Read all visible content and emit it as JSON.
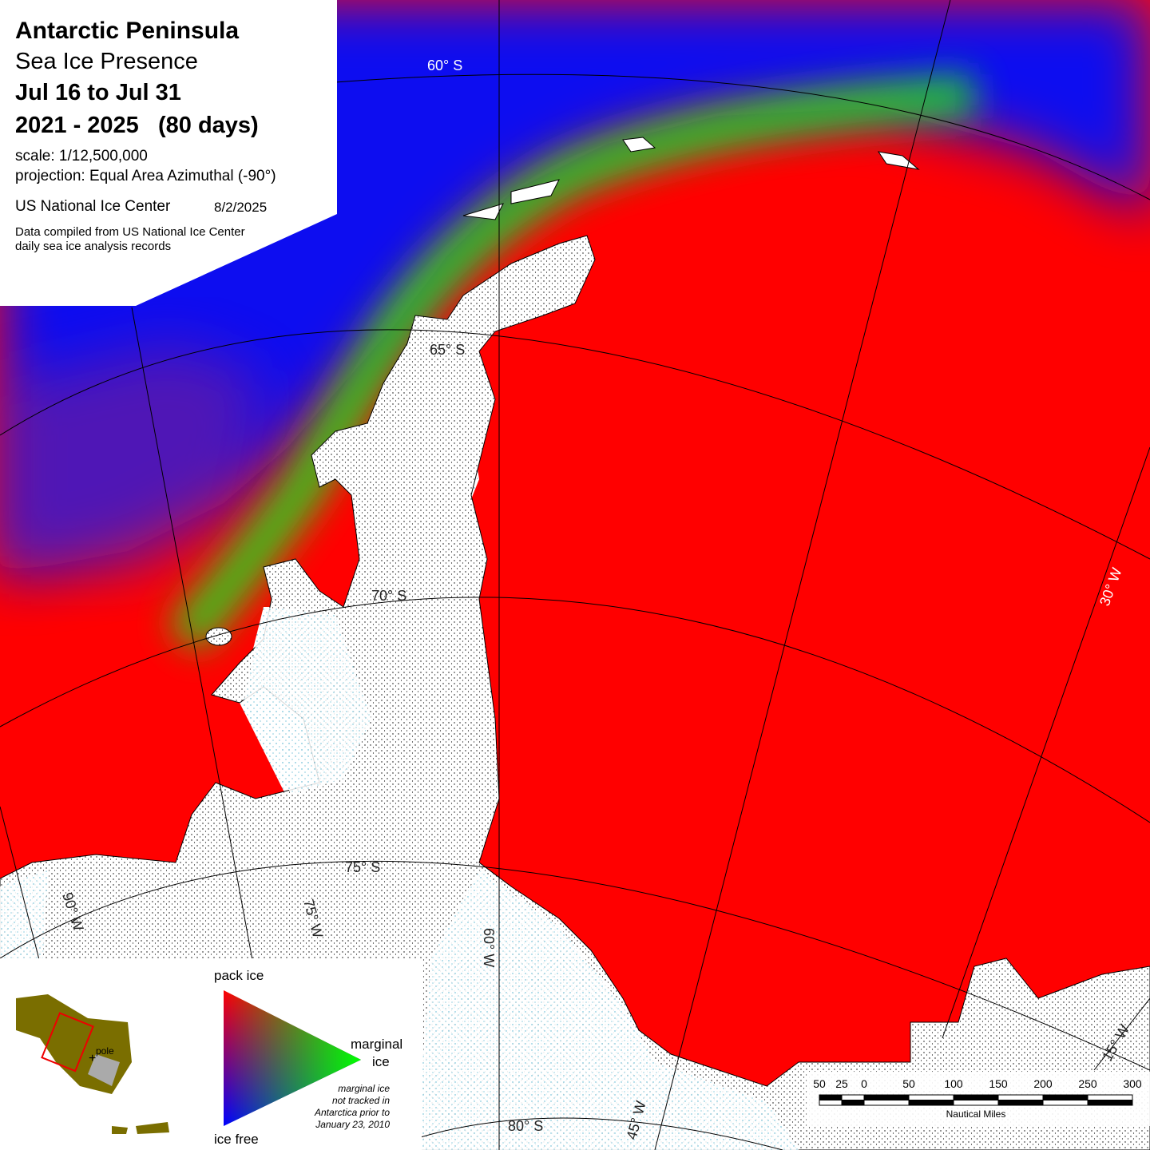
{
  "header": {
    "title": "Antarctic Peninsula",
    "subtitle": "Sea Ice Presence",
    "period": "Jul 16 to Jul 31",
    "years": "2021 - 2025   (80 days)",
    "scale": "scale: 1/12,500,000",
    "projection": "projection: Equal Area Azimuthal (-90°)",
    "agency": "US National Ice Center",
    "date": "8/2/2025",
    "note_line1": "Data compiled from US National Ice Center",
    "note_line2": "daily sea ice analysis records"
  },
  "graticule": {
    "parallels": [
      "60° S",
      "65° S",
      "70° S",
      "75° S",
      "80° S"
    ],
    "meridians": [
      "90° W",
      "75° W",
      "60° W",
      "45° W",
      "30° W",
      "15° W"
    ]
  },
  "legend": {
    "pack_ice": "pack ice",
    "marginal_ice_1": "marginal",
    "marginal_ice_2": "ice",
    "ice_free": "ice free",
    "note": [
      "marginal ice",
      "not tracked in",
      "Antarctica prior to",
      "January 23, 2010"
    ],
    "pole": "pole"
  },
  "scale_bar": {
    "labels": [
      "50",
      "25",
      "0",
      "50",
      "100",
      "150",
      "200",
      "250",
      "300"
    ],
    "unit": "Nautical Miles"
  }
}
